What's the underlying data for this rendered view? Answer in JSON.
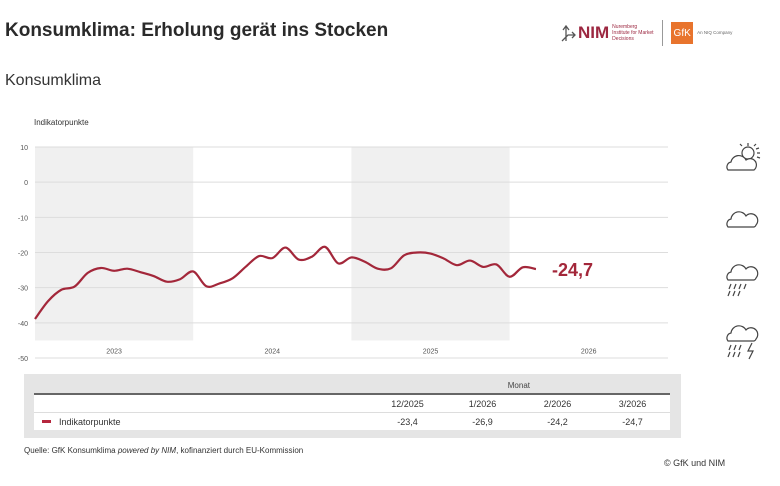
{
  "header": {
    "title": "Konsumklima: Erholung gerät ins Stocken",
    "subtitle": "Konsumklima",
    "logo_nim": "NIM",
    "logo_nim_sub": "Nuremberg Institute for Market Decisions",
    "logo_gfk": "GfK",
    "logo_gfk_sub": "An NIQ Company"
  },
  "chart_data": {
    "type": "line",
    "title": "Konsumklima",
    "ylabel": "Indikatorpunkte",
    "ylim": [
      -50,
      10
    ],
    "yticks": [
      "10",
      "0",
      "-10",
      "-20",
      "-30",
      "-40",
      "-50"
    ],
    "year_labels": [
      "2023",
      "2024",
      "2025",
      "2026"
    ],
    "grid": true,
    "line_color": "#a3273a",
    "series": [
      {
        "name": "Indikatorpunkte",
        "x_start": "1/2023",
        "x_end": "3/2026",
        "values": [
          -38.9,
          -33.8,
          -30.6,
          -29.7,
          -25.8,
          -24.4,
          -25.2,
          -24.6,
          -25.6,
          -26.7,
          -28.3,
          -27.6,
          -25.4,
          -29.6,
          -28.8,
          -27.3,
          -24.0,
          -21.0,
          -21.6,
          -18.6,
          -22.0,
          -21.2,
          -18.4,
          -23.1,
          -21.4,
          -22.6,
          -24.6,
          -24.5,
          -20.8,
          -20.0,
          -20.3,
          -21.7,
          -23.6,
          -22.3,
          -24.1,
          -23.4,
          -26.9,
          -24.2,
          -24.7
        ]
      }
    ],
    "annotation": "-24,7"
  },
  "weather_icons": [
    "sun-cloud-icon",
    "cloud-icon",
    "rain-cloud-icon",
    "thunderstorm-icon"
  ],
  "table": {
    "group_header": "Monat",
    "columns": [
      "12/2025",
      "1/2026",
      "2/2026",
      "3/2026"
    ],
    "row_label": "Indikatorpunkte",
    "values": [
      "-23,4",
      "-26,9",
      "-24,2",
      "-24,7"
    ]
  },
  "footer": {
    "source_prefix": "Quelle: GfK Konsumklima ",
    "source_italic": "powered by NIM",
    "source_suffix": ", kofinanziert durch EU-Kommission",
    "copyright": "© GfK und NIM"
  }
}
